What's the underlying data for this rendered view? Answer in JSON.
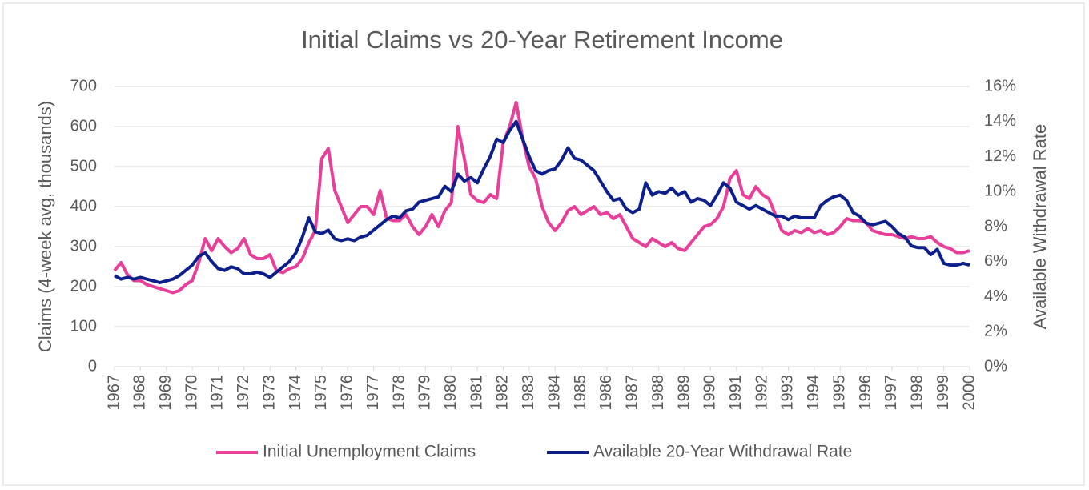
{
  "chart_data": {
    "type": "line",
    "title": "Initial Claims vs 20-Year Retirement Income",
    "ylabel": "Claims (4-week avg, thousands)",
    "y2label": "Available Withdrawal Rate",
    "xlim": [
      1967,
      2000
    ],
    "xticks": [
      1967,
      1968,
      1969,
      1970,
      1971,
      1972,
      1973,
      1974,
      1975,
      1976,
      1977,
      1978,
      1979,
      1980,
      1981,
      1982,
      1983,
      1984,
      1985,
      1986,
      1987,
      1988,
      1989,
      1990,
      1991,
      1992,
      1993,
      1994,
      1995,
      1996,
      1997,
      1998,
      1999,
      2000
    ],
    "ylim": [
      0,
      700
    ],
    "yticks": [
      0,
      100,
      200,
      300,
      400,
      500,
      600,
      700
    ],
    "y2lim": [
      0,
      16
    ],
    "y2ticks": [
      {
        "value": 0,
        "label": "0%"
      },
      {
        "value": 2,
        "label": "2%"
      },
      {
        "value": 4,
        "label": "4%"
      },
      {
        "value": 6,
        "label": "6%"
      },
      {
        "value": 8,
        "label": "8%"
      },
      {
        "value": 10,
        "label": "10%"
      },
      {
        "value": 12,
        "label": "12%"
      },
      {
        "value": 14,
        "label": "14%"
      },
      {
        "value": 16,
        "label": "16%"
      }
    ],
    "legend": "bottom",
    "x": [
      1967,
      1967.25,
      1967.5,
      1967.75,
      1968,
      1968.25,
      1968.5,
      1968.75,
      1969,
      1969.25,
      1969.5,
      1969.75,
      1970,
      1970.25,
      1970.5,
      1970.75,
      1971,
      1971.25,
      1971.5,
      1971.75,
      1972,
      1972.25,
      1972.5,
      1972.75,
      1973,
      1973.25,
      1973.5,
      1973.75,
      1974,
      1974.25,
      1974.5,
      1974.75,
      1975,
      1975.25,
      1975.5,
      1975.75,
      1976,
      1976.25,
      1976.5,
      1976.75,
      1977,
      1977.25,
      1977.5,
      1977.75,
      1978,
      1978.25,
      1978.5,
      1978.75,
      1979,
      1979.25,
      1979.5,
      1979.75,
      1980,
      1980.25,
      1980.5,
      1980.75,
      1981,
      1981.25,
      1981.5,
      1981.75,
      1982,
      1982.25,
      1982.5,
      1982.75,
      1983,
      1983.25,
      1983.5,
      1983.75,
      1984,
      1984.25,
      1984.5,
      1984.75,
      1985,
      1985.25,
      1985.5,
      1985.75,
      1986,
      1986.25,
      1986.5,
      1986.75,
      1987,
      1987.25,
      1987.5,
      1987.75,
      1988,
      1988.25,
      1988.5,
      1988.75,
      1989,
      1989.25,
      1989.5,
      1989.75,
      1990,
      1990.25,
      1990.5,
      1990.75,
      1991,
      1991.25,
      1991.5,
      1991.75,
      1992,
      1992.25,
      1992.5,
      1992.75,
      1993,
      1993.25,
      1993.5,
      1993.75,
      1994,
      1994.25,
      1994.5,
      1994.75,
      1995,
      1995.25,
      1995.5,
      1995.75,
      1996,
      1996.25,
      1996.5,
      1996.75,
      1997,
      1997.25,
      1997.5,
      1997.75,
      1998,
      1998.25,
      1998.5,
      1998.75,
      1999,
      1999.25,
      1999.5,
      1999.75,
      2000
    ],
    "series": [
      {
        "name": "Initial Unemployment Claims",
        "color": "#e8409a",
        "axis": "y",
        "values": [
          240,
          260,
          230,
          215,
          215,
          205,
          200,
          195,
          190,
          185,
          190,
          205,
          215,
          260,
          320,
          290,
          320,
          300,
          285,
          295,
          320,
          280,
          270,
          270,
          280,
          240,
          235,
          245,
          250,
          270,
          310,
          340,
          520,
          545,
          440,
          400,
          360,
          380,
          400,
          400,
          380,
          440,
          370,
          365,
          365,
          380,
          350,
          330,
          350,
          380,
          350,
          390,
          410,
          600,
          520,
          430,
          415,
          410,
          430,
          420,
          560,
          600,
          660,
          570,
          500,
          470,
          400,
          360,
          340,
          360,
          390,
          400,
          380,
          390,
          400,
          380,
          385,
          370,
          380,
          350,
          320,
          310,
          300,
          320,
          310,
          300,
          310,
          295,
          290,
          310,
          330,
          350,
          355,
          370,
          400,
          470,
          490,
          430,
          420,
          450,
          430,
          420,
          380,
          340,
          330,
          340,
          335,
          345,
          335,
          340,
          330,
          335,
          350,
          370,
          365,
          365,
          360,
          340,
          335,
          330,
          330,
          325,
          320,
          325,
          320,
          320,
          325,
          310,
          300,
          295,
          285,
          285,
          290
        ]
      },
      {
        "name": "Available 20-Year Withdrawal Rate",
        "color": "#0d1f8a",
        "axis": "y2",
        "values": [
          5.2,
          5.0,
          5.1,
          5.0,
          5.1,
          5.0,
          4.9,
          4.8,
          4.9,
          5.0,
          5.2,
          5.5,
          5.8,
          6.3,
          6.5,
          6.0,
          5.6,
          5.5,
          5.7,
          5.6,
          5.3,
          5.3,
          5.4,
          5.3,
          5.1,
          5.4,
          5.7,
          6.0,
          6.5,
          7.4,
          8.5,
          7.7,
          7.6,
          7.8,
          7.3,
          7.2,
          7.3,
          7.2,
          7.4,
          7.5,
          7.8,
          8.1,
          8.4,
          8.6,
          8.5,
          8.9,
          9.0,
          9.4,
          9.5,
          9.6,
          9.7,
          10.3,
          10.0,
          11.0,
          10.6,
          10.8,
          10.5,
          11.3,
          12.0,
          13.0,
          12.8,
          13.5,
          14.0,
          13.0,
          12.0,
          11.2,
          11.0,
          11.2,
          11.3,
          11.8,
          12.5,
          11.9,
          11.8,
          11.5,
          11.2,
          10.6,
          10.0,
          9.5,
          9.6,
          9.0,
          8.8,
          9.0,
          10.5,
          9.8,
          10.0,
          9.9,
          10.2,
          9.8,
          10.0,
          9.4,
          9.6,
          9.5,
          9.2,
          9.8,
          10.5,
          10.2,
          9.4,
          9.2,
          9.0,
          9.2,
          9.0,
          8.8,
          8.6,
          8.6,
          8.4,
          8.6,
          8.5,
          8.5,
          8.5,
          9.2,
          9.5,
          9.7,
          9.8,
          9.5,
          8.8,
          8.6,
          8.2,
          8.1,
          8.2,
          8.3,
          8.0,
          7.6,
          7.4,
          6.9,
          6.8,
          6.8,
          6.4,
          6.7,
          5.9,
          5.8,
          5.8,
          5.9,
          5.8
        ]
      }
    ]
  }
}
